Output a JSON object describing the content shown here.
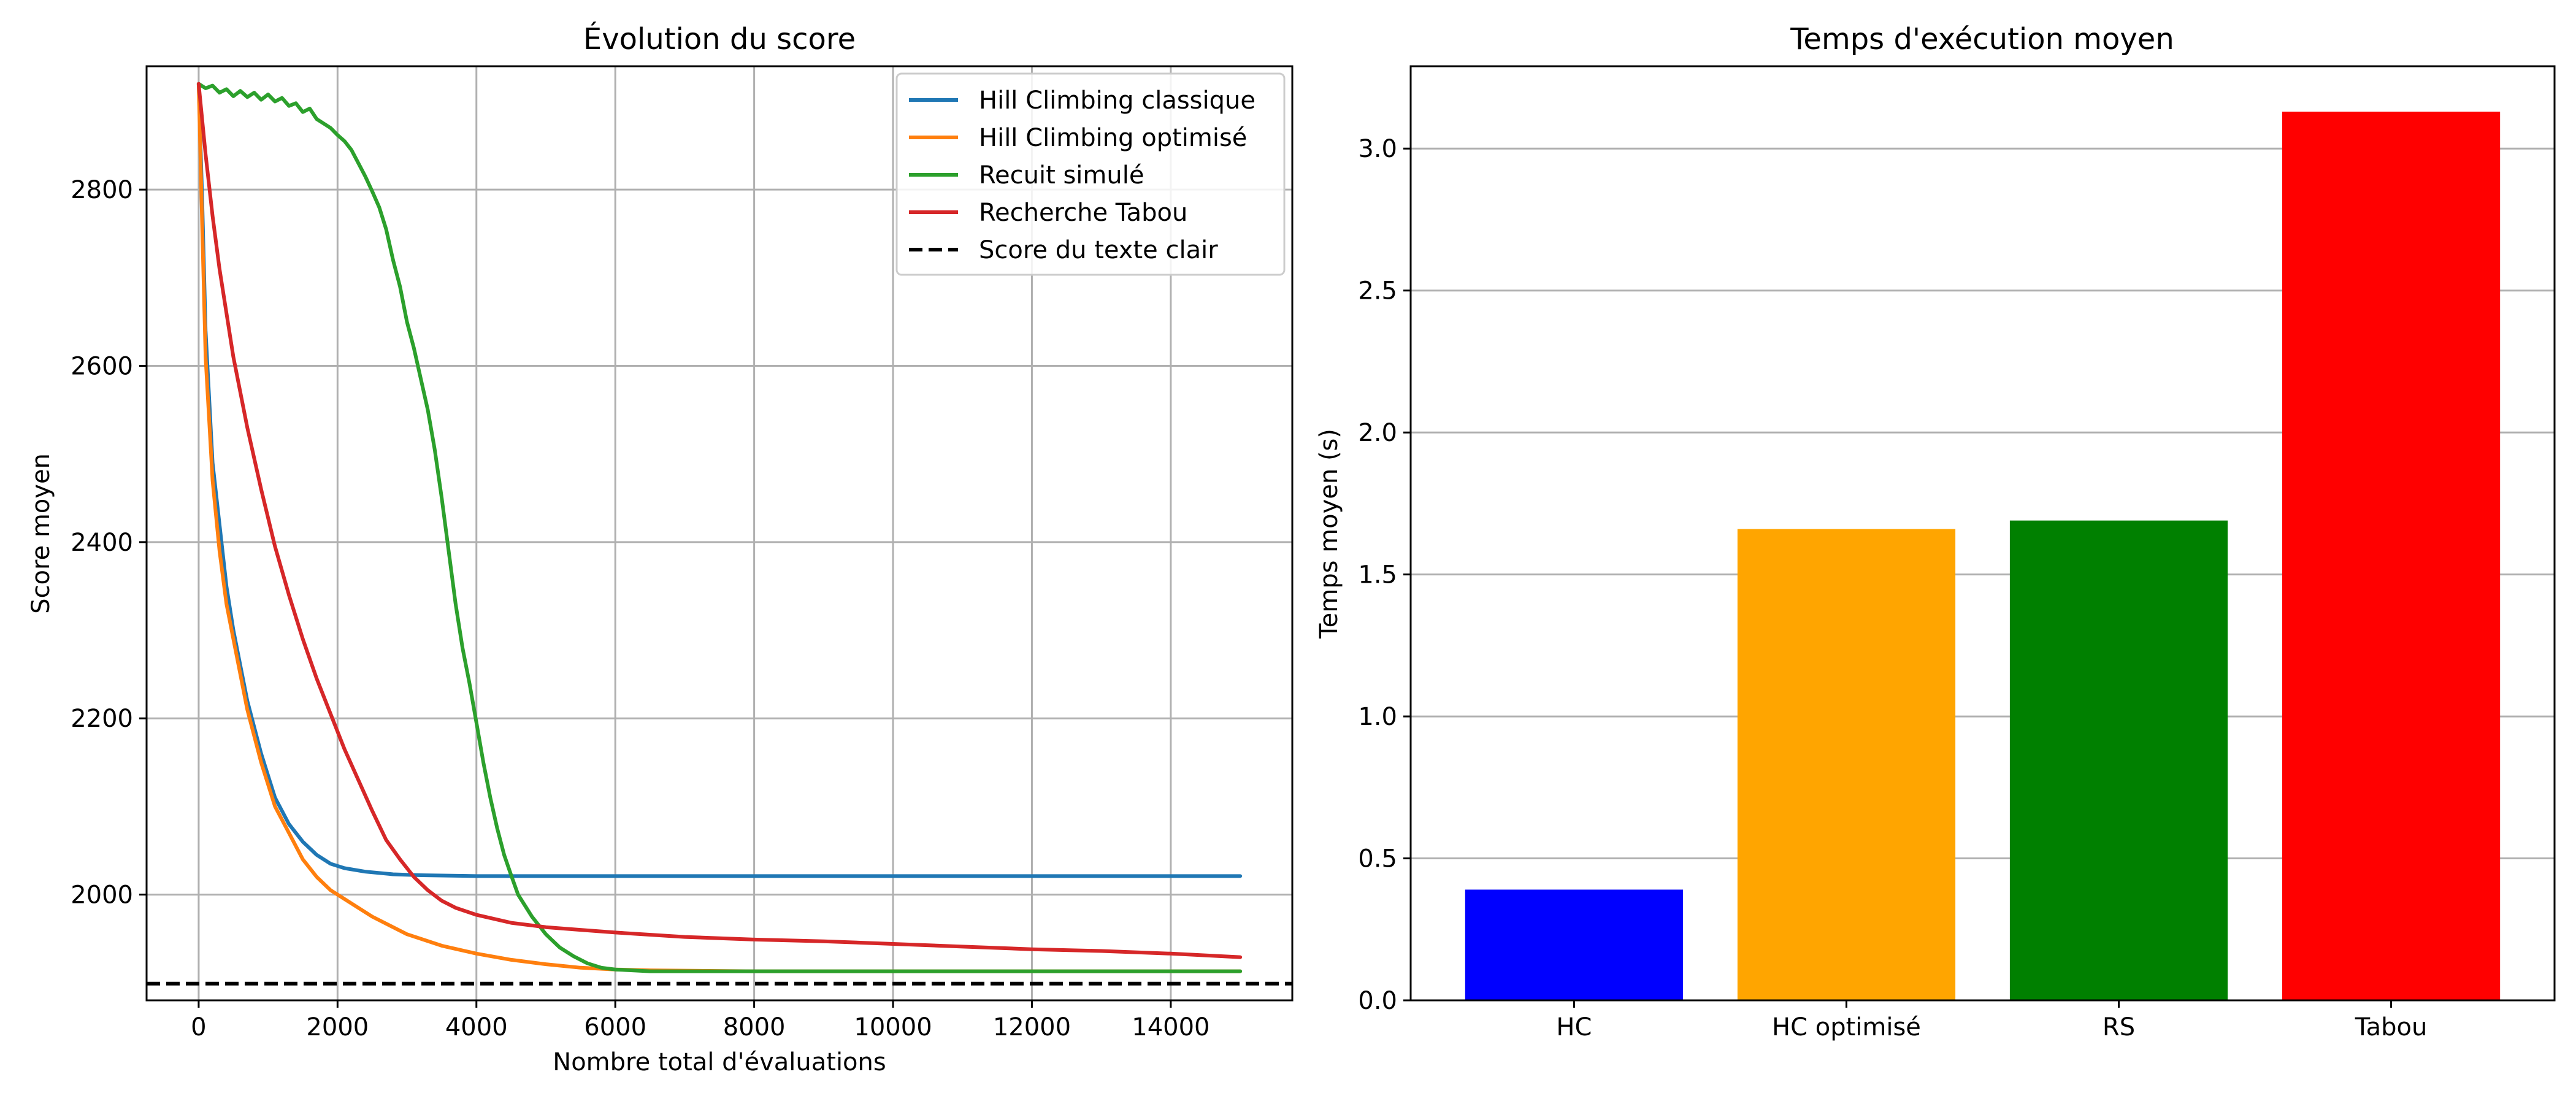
{
  "chart_data": [
    {
      "type": "line",
      "title": "Évolution du score",
      "xlabel": "Nombre total d'évaluations",
      "ylabel": "Score moyen",
      "xlim": [
        -750,
        15750
      ],
      "ylim": [
        1880,
        2940
      ],
      "xticks": [
        0,
        2000,
        4000,
        6000,
        8000,
        10000,
        12000,
        14000
      ],
      "yticks": [
        2000,
        2200,
        2400,
        2600,
        2800
      ],
      "grid": true,
      "legend_position": "top-right",
      "series": [
        {
          "name": "Hill Climbing classique",
          "color": "#1f77b4",
          "x": [
            0,
            50,
            100,
            200,
            300,
            400,
            500,
            700,
            900,
            1100,
            1300,
            1500,
            1700,
            1900,
            2100,
            2400,
            2800,
            3200,
            4000,
            6000,
            8000,
            10000,
            12000,
            15000
          ],
          "y": [
            2920,
            2790,
            2640,
            2490,
            2420,
            2350,
            2300,
            2220,
            2160,
            2110,
            2080,
            2060,
            2045,
            2035,
            2030,
            2026,
            2023,
            2022,
            2021,
            2021,
            2021,
            2021,
            2021,
            2021
          ]
        },
        {
          "name": "Hill Climbing optimisé",
          "color": "#ff7f0e",
          "x": [
            0,
            50,
            100,
            200,
            300,
            400,
            500,
            700,
            900,
            1100,
            1300,
            1500,
            1700,
            1900,
            2100,
            2500,
            3000,
            3500,
            4000,
            4500,
            5000,
            5500,
            6000,
            6500,
            8000,
            10000,
            12000,
            15000
          ],
          "y": [
            2920,
            2760,
            2610,
            2470,
            2390,
            2330,
            2290,
            2210,
            2150,
            2100,
            2070,
            2040,
            2020,
            2005,
            1995,
            1975,
            1955,
            1942,
            1933,
            1926,
            1921,
            1917,
            1915,
            1914,
            1913,
            1913,
            1913,
            1913
          ]
        },
        {
          "name": "Recuit simulé",
          "color": "#2ca02c",
          "x": [
            0,
            100,
            200,
            300,
            400,
            500,
            600,
            700,
            800,
            900,
            1000,
            1100,
            1200,
            1300,
            1400,
            1500,
            1600,
            1700,
            1800,
            1900,
            2000,
            2100,
            2200,
            2300,
            2400,
            2500,
            2600,
            2700,
            2800,
            2900,
            3000,
            3100,
            3200,
            3300,
            3400,
            3500,
            3600,
            3700,
            3800,
            3900,
            4000,
            4100,
            4200,
            4300,
            4400,
            4500,
            4600,
            4800,
            5000,
            5200,
            5400,
            5600,
            5800,
            6000,
            6500,
            7000,
            8000,
            10000,
            12000,
            15000
          ],
          "y": [
            2920,
            2915,
            2918,
            2910,
            2914,
            2906,
            2912,
            2905,
            2910,
            2902,
            2908,
            2900,
            2904,
            2895,
            2898,
            2888,
            2892,
            2880,
            2875,
            2870,
            2862,
            2855,
            2845,
            2830,
            2815,
            2798,
            2780,
            2755,
            2720,
            2690,
            2650,
            2620,
            2585,
            2550,
            2505,
            2450,
            2390,
            2330,
            2280,
            2240,
            2195,
            2150,
            2110,
            2075,
            2045,
            2022,
            2000,
            1975,
            1955,
            1940,
            1930,
            1922,
            1917,
            1915,
            1913,
            1913,
            1913,
            1913,
            1913,
            1913
          ]
        },
        {
          "name": "Recherche Tabou",
          "color": "#d62728",
          "x": [
            0,
            100,
            200,
            300,
            400,
            500,
            700,
            900,
            1100,
            1300,
            1500,
            1700,
            1900,
            2100,
            2300,
            2500,
            2700,
            2900,
            3100,
            3300,
            3500,
            3700,
            4000,
            4500,
            5000,
            5500,
            6000,
            7000,
            8000,
            9000,
            10000,
            11000,
            12000,
            13000,
            14000,
            15000
          ],
          "y": [
            2920,
            2840,
            2770,
            2710,
            2660,
            2610,
            2530,
            2460,
            2395,
            2340,
            2290,
            2245,
            2205,
            2165,
            2130,
            2095,
            2062,
            2040,
            2020,
            2005,
            1993,
            1985,
            1977,
            1968,
            1963,
            1960,
            1957,
            1952,
            1949,
            1947,
            1944,
            1941,
            1938,
            1936,
            1933,
            1929
          ]
        },
        {
          "name": "Score du texte clair",
          "color": "#000000",
          "style": "dashed",
          "x": [
            -750,
            15750
          ],
          "y": [
            1899,
            1899
          ]
        }
      ]
    },
    {
      "type": "bar",
      "title": "Temps d'exécution moyen",
      "xlabel": "",
      "ylabel": "Temps moyen (s)",
      "ylim": [
        0,
        3.29
      ],
      "yticks": [
        "0.0",
        "0.5",
        "1.0",
        "1.5",
        "2.0",
        "2.5",
        "3.0"
      ],
      "grid": true,
      "categories": [
        "HC",
        "HC optimisé",
        "RS",
        "Tabou"
      ],
      "values": [
        0.39,
        1.66,
        1.69,
        3.13
      ],
      "colors": [
        "#0000ff",
        "#ffa500",
        "#008000",
        "#ff0000"
      ]
    }
  ]
}
